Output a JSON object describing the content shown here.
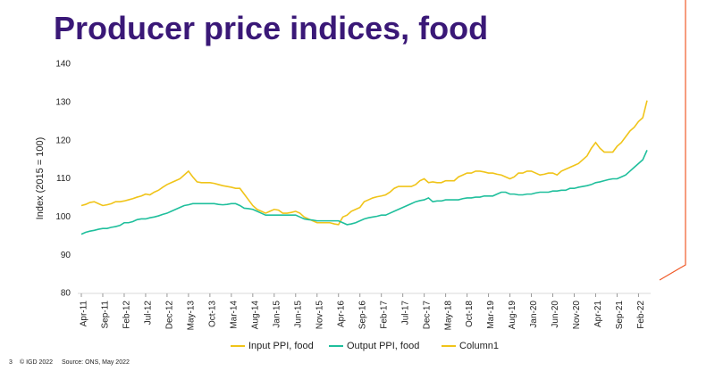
{
  "chart_data": {
    "type": "line",
    "title": "Producer price indices, food",
    "y_label": "Index (2015 = 100)",
    "footer": {
      "page": "3",
      "copyright": "© IGD 2022",
      "source": "Source: ONS, May 2022"
    },
    "categories": [
      "Apr-11",
      null,
      null,
      null,
      null,
      "Sep-11",
      null,
      null,
      null,
      null,
      "Feb-12",
      null,
      null,
      null,
      null,
      "Jul-12",
      null,
      null,
      null,
      null,
      "Dec-12",
      null,
      null,
      null,
      null,
      "May-13",
      null,
      null,
      null,
      null,
      "Oct-13",
      null,
      null,
      null,
      null,
      "Mar-14",
      null,
      null,
      null,
      null,
      "Aug-14",
      null,
      null,
      null,
      null,
      "Jan-15",
      null,
      null,
      null,
      null,
      "Jun-15",
      null,
      null,
      null,
      null,
      "Nov-15",
      null,
      null,
      null,
      null,
      "Apr-16",
      null,
      null,
      null,
      null,
      "Sep-16",
      null,
      null,
      null,
      null,
      "Feb-17",
      null,
      null,
      null,
      null,
      "Jul-17",
      null,
      null,
      null,
      null,
      "Dec-17",
      null,
      null,
      null,
      null,
      "May-18",
      null,
      null,
      null,
      null,
      "Oct-18",
      null,
      null,
      null,
      null,
      "Mar-19",
      null,
      null,
      null,
      null,
      "Aug-19",
      null,
      null,
      null,
      null,
      "Jan-20",
      null,
      null,
      null,
      null,
      "Jun-20",
      null,
      null,
      null,
      null,
      "Nov-20",
      null,
      null,
      null,
      null,
      "Apr-21",
      null,
      null,
      null,
      null,
      "Sep-21",
      null,
      null,
      null,
      null,
      "Feb-22",
      null,
      null
    ],
    "series": [
      {
        "name": "Input PPI, food",
        "color": "#f0c419",
        "values": [
          103,
          103.3,
          103.8,
          104,
          103.5,
          103,
          103.2,
          103.5,
          104,
          104,
          104.2,
          104.5,
          104.8,
          105.2,
          105.5,
          106,
          105.8,
          106.5,
          107,
          107.8,
          108.5,
          109,
          109.5,
          110,
          111,
          112,
          110.5,
          109.2,
          109,
          109,
          109,
          108.8,
          108.5,
          108.2,
          108,
          107.8,
          107.5,
          107.5,
          106,
          104.5,
          103,
          102,
          101.5,
          101,
          101.5,
          102,
          101.8,
          101,
          101,
          101.2,
          101.5,
          101,
          100,
          99.5,
          99,
          98.5,
          98.5,
          98.5,
          98.5,
          98.2,
          98,
          100,
          100.5,
          101.5,
          102,
          102.5,
          104,
          104.5,
          105,
          105.3,
          105.5,
          105.8,
          106.5,
          107.5,
          108,
          108,
          108,
          108,
          108.5,
          109.5,
          110,
          109,
          109.2,
          109,
          109,
          109.5,
          109.5,
          109.5,
          110.5,
          111,
          111.5,
          111.5,
          112,
          112,
          111.8,
          111.5,
          111.5,
          111.2,
          111,
          110.5,
          110,
          110.5,
          111.5,
          111.5,
          112,
          112,
          111.5,
          111,
          111.2,
          111.5,
          111.5,
          111,
          112,
          112.5,
          113,
          113.5,
          114,
          115,
          116,
          118,
          119.5,
          118,
          117,
          117,
          117,
          118.5,
          119.5,
          121,
          122.5,
          123.5,
          125,
          126,
          130.5
        ]
      },
      {
        "name": "Output PPI, food",
        "color": "#1fbf9c",
        "values": [
          95.5,
          96,
          96.3,
          96.5,
          96.8,
          97,
          97,
          97.3,
          97.5,
          97.8,
          98.5,
          98.5,
          98.8,
          99.3,
          99.5,
          99.5,
          99.8,
          100,
          100.3,
          100.7,
          101,
          101.5,
          102,
          102.5,
          103,
          103.2,
          103.5,
          103.5,
          103.5,
          103.5,
          103.5,
          103.5,
          103.3,
          103.2,
          103.3,
          103.5,
          103.5,
          103,
          102.3,
          102.2,
          102,
          101.5,
          101,
          100.5,
          100.5,
          100.5,
          100.5,
          100.5,
          100.5,
          100.5,
          100.5,
          100,
          99.5,
          99.3,
          99.2,
          99,
          99,
          99,
          99,
          99,
          99,
          98.5,
          98,
          98.2,
          98.5,
          99,
          99.5,
          99.8,
          100,
          100.2,
          100.5,
          100.5,
          101,
          101.5,
          102,
          102.5,
          103,
          103.5,
          104,
          104.3,
          104.5,
          105,
          104,
          104.2,
          104.2,
          104.5,
          104.5,
          104.5,
          104.5,
          104.8,
          105,
          105,
          105.2,
          105.2,
          105.5,
          105.5,
          105.5,
          106,
          106.5,
          106.5,
          106,
          106,
          105.8,
          105.8,
          106,
          106,
          106.3,
          106.5,
          106.5,
          106.5,
          106.8,
          106.8,
          107,
          107,
          107.5,
          107.5,
          107.8,
          108,
          108.2,
          108.5,
          109,
          109.2,
          109.5,
          109.8,
          110,
          110,
          110.5,
          111,
          112,
          113,
          114,
          115,
          117.5
        ]
      },
      {
        "name": "Column1",
        "color": "#f0c419",
        "values": [
          null,
          null,
          null,
          null,
          null,
          null,
          null,
          null,
          null,
          null,
          null,
          null,
          null,
          null,
          null,
          null,
          null,
          null,
          null,
          null,
          null,
          null,
          null,
          null,
          null,
          null,
          null,
          null,
          null,
          null,
          null,
          null,
          null,
          null,
          null,
          null,
          null,
          null,
          null,
          null,
          null,
          null,
          null,
          null,
          null,
          null,
          null,
          null,
          null,
          null,
          null,
          null,
          null,
          null,
          null,
          null,
          null,
          null,
          null,
          null,
          null,
          null,
          null,
          null,
          null,
          null,
          null,
          null,
          null,
          null,
          null,
          null,
          null,
          null,
          null,
          null,
          null,
          null,
          null,
          null,
          null,
          null,
          null,
          null,
          null,
          null,
          null,
          null,
          null,
          null,
          null,
          null,
          null,
          null,
          null,
          null,
          null,
          null,
          null,
          null,
          null,
          null,
          null,
          null,
          null,
          null,
          null,
          null,
          null,
          null,
          null,
          null,
          null,
          null,
          null,
          null,
          null,
          null,
          null,
          null,
          null,
          null,
          null,
          null,
          null,
          null,
          null,
          null,
          null,
          null,
          null,
          null,
          null
        ]
      }
    ],
    "ylim": [
      80,
      140
    ],
    "yticks": [
      80,
      90,
      100,
      110,
      120,
      130,
      140
    ],
    "grid": false,
    "legend": "bottom"
  }
}
